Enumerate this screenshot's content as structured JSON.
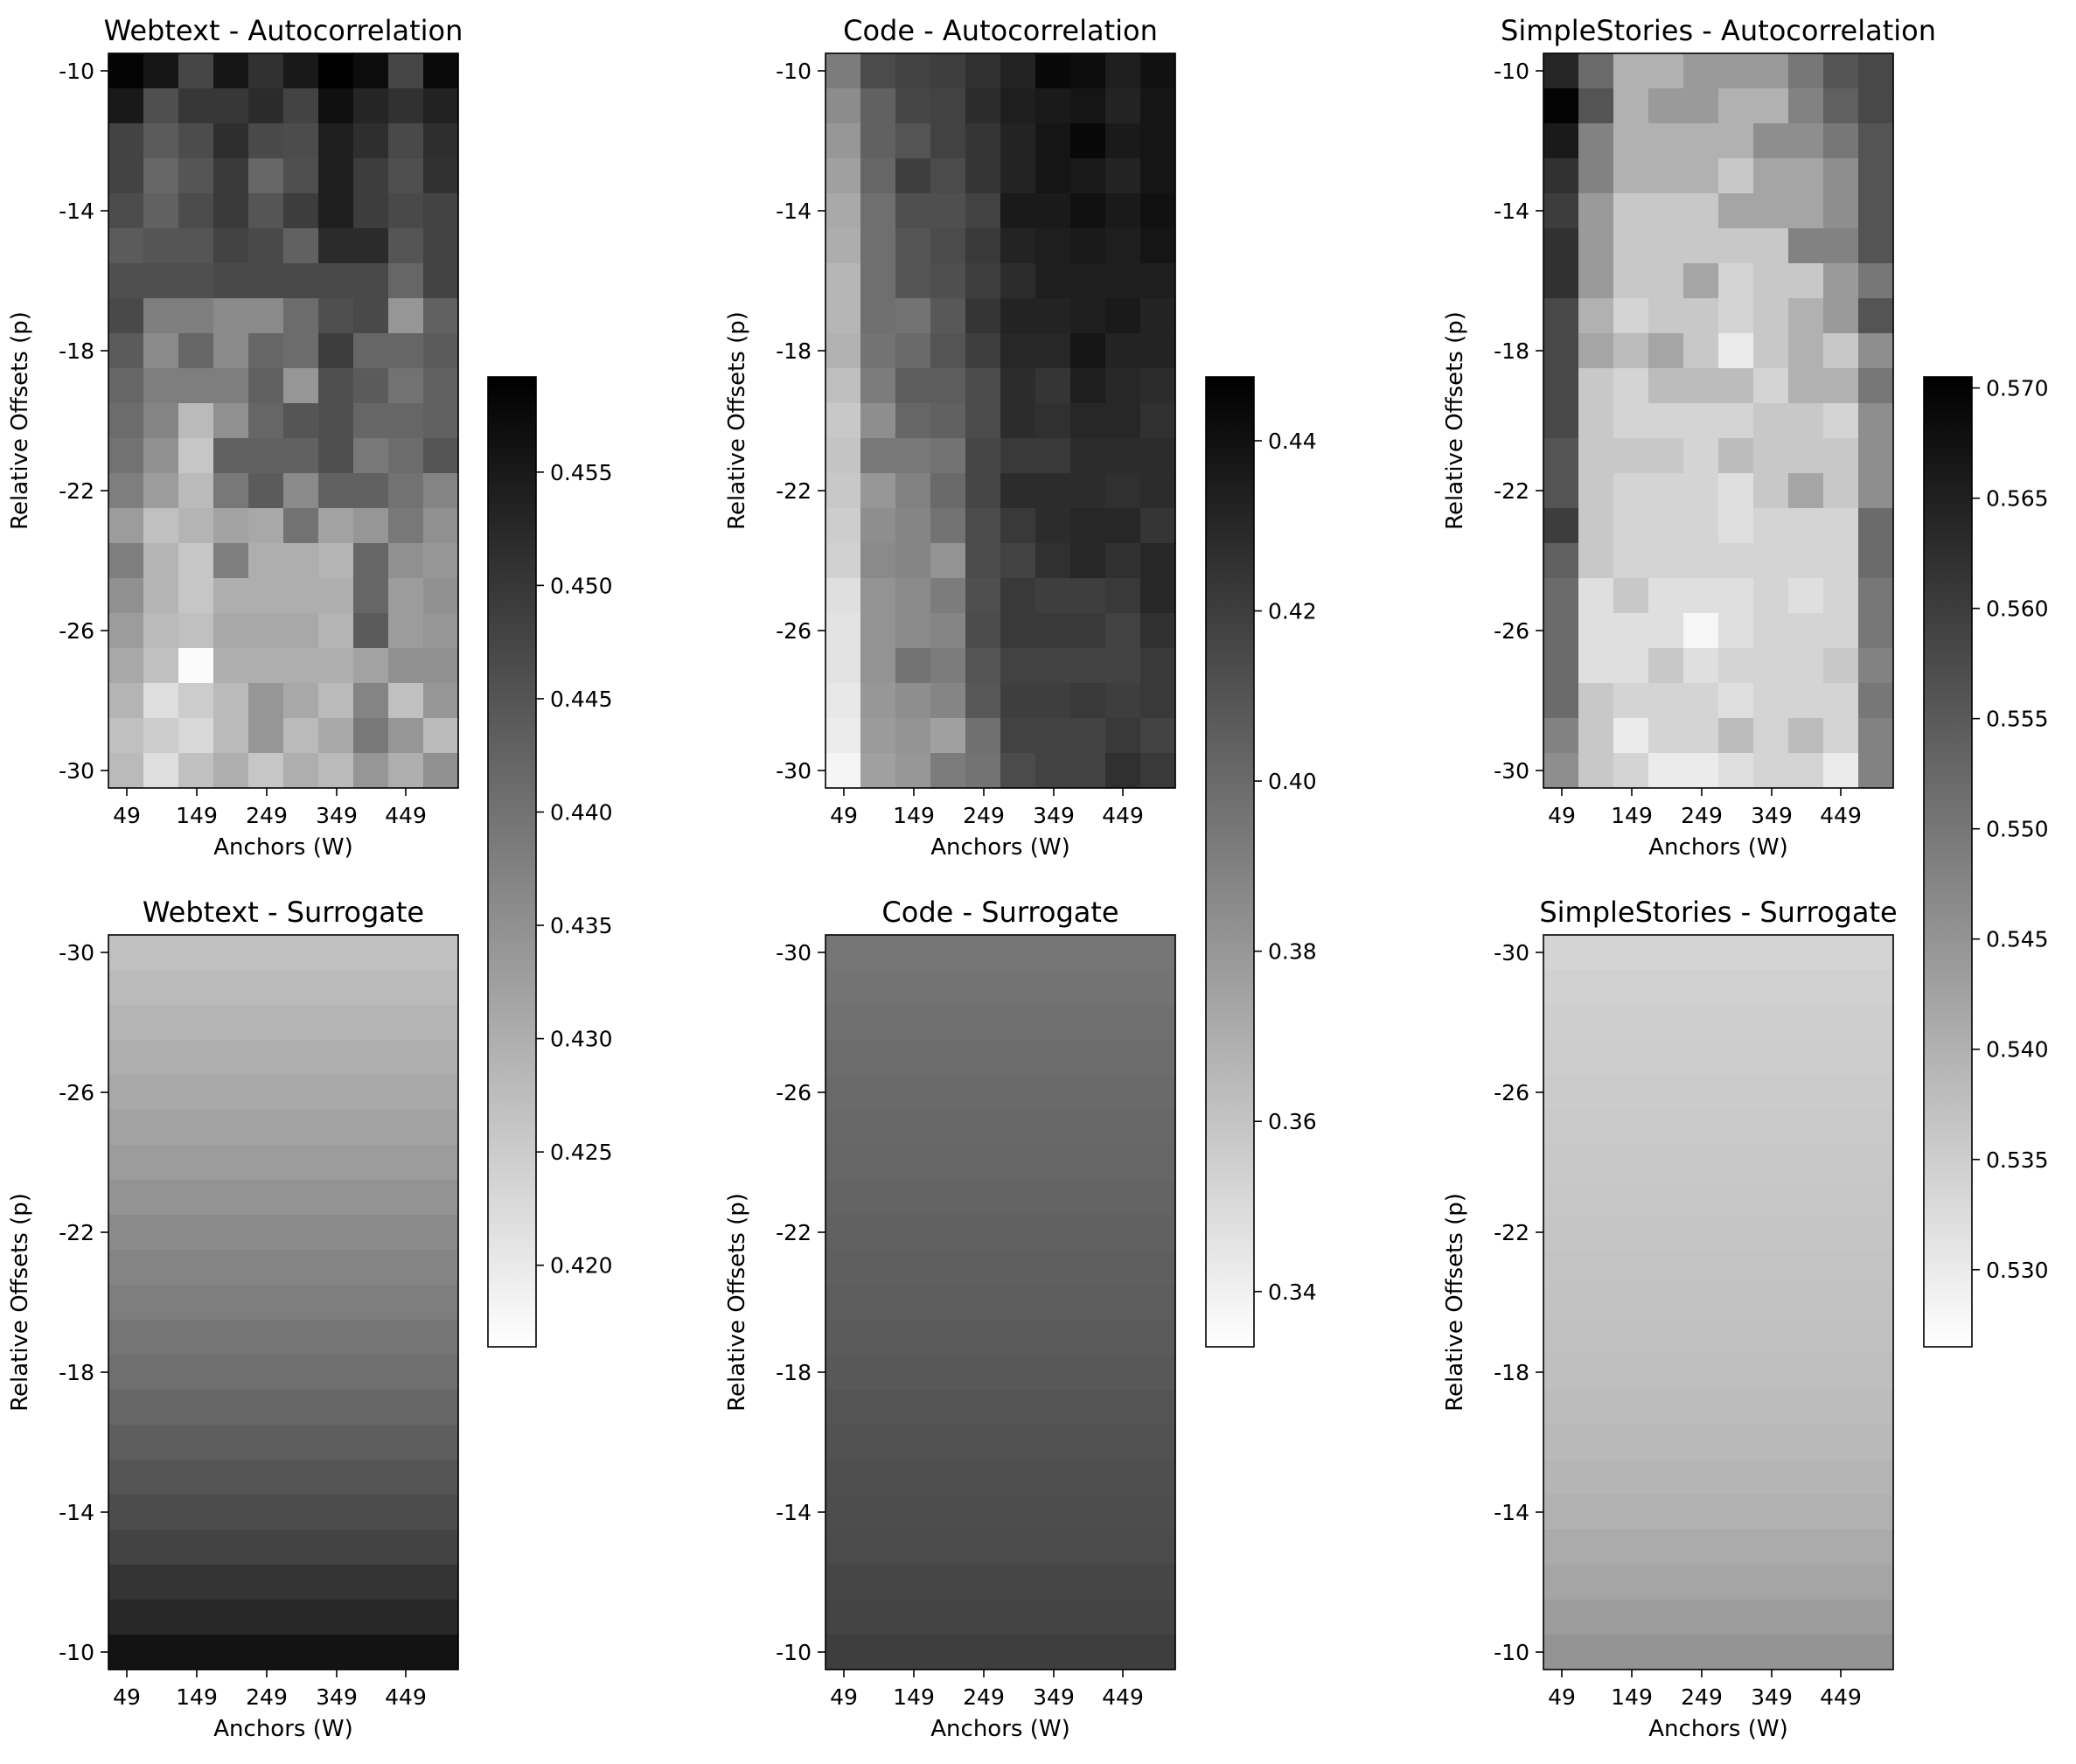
{
  "chart_data": [
    {
      "type": "heatmap",
      "title": "Webtext - Autocorrelation",
      "xlabel": "Anchors (W)",
      "ylabel": "Relative Offsets (p)",
      "x_ticks": [
        "49",
        "149",
        "249",
        "349",
        "449"
      ],
      "y_ticks": [
        "-10",
        "-14",
        "-18",
        "-22",
        "-26",
        "-30"
      ],
      "y_direction": "top -10, bottom -30",
      "rows_from_top": 21,
      "cols": 10,
      "colorscale": "gray_r",
      "values": [
        [
          0.4585,
          0.4555,
          0.4475,
          0.4555,
          0.451,
          0.455,
          0.459,
          0.457,
          0.4475,
          0.4575
        ],
        [
          0.455,
          0.446,
          0.45,
          0.45,
          0.452,
          0.448,
          0.4565,
          0.453,
          0.451,
          0.4535
        ],
        [
          0.448,
          0.444,
          0.4465,
          0.4515,
          0.447,
          0.4465,
          0.454,
          0.4515,
          0.447,
          0.4515
        ],
        [
          0.448,
          0.442,
          0.445,
          0.4495,
          0.442,
          0.446,
          0.454,
          0.449,
          0.446,
          0.451
        ],
        [
          0.4465,
          0.443,
          0.4465,
          0.4495,
          0.445,
          0.449,
          0.454,
          0.449,
          0.447,
          0.448
        ],
        [
          0.444,
          0.445,
          0.445,
          0.448,
          0.447,
          0.443,
          0.452,
          0.452,
          0.445,
          0.448
        ],
        [
          0.446,
          0.446,
          0.446,
          0.447,
          0.447,
          0.447,
          0.447,
          0.447,
          0.442,
          0.448
        ],
        [
          0.447,
          0.438,
          0.438,
          0.436,
          0.436,
          0.441,
          0.446,
          0.447,
          0.434,
          0.443
        ],
        [
          0.444,
          0.436,
          0.442,
          0.436,
          0.442,
          0.441,
          0.449,
          0.442,
          0.442,
          0.444
        ],
        [
          0.442,
          0.438,
          0.438,
          0.438,
          0.443,
          0.434,
          0.446,
          0.444,
          0.44,
          0.443
        ],
        [
          0.441,
          0.437,
          0.428,
          0.435,
          0.442,
          0.445,
          0.446,
          0.442,
          0.442,
          0.443
        ],
        [
          0.44,
          0.435,
          0.426,
          0.443,
          0.443,
          0.443,
          0.446,
          0.439,
          0.441,
          0.445
        ],
        [
          0.438,
          0.433,
          0.428,
          0.439,
          0.444,
          0.436,
          0.443,
          0.443,
          0.44,
          0.437
        ],
        [
          0.433,
          0.427,
          0.429,
          0.432,
          0.431,
          0.44,
          0.432,
          0.434,
          0.439,
          0.435
        ],
        [
          0.438,
          0.429,
          0.426,
          0.438,
          0.43,
          0.43,
          0.429,
          0.442,
          0.435,
          0.434
        ],
        [
          0.435,
          0.429,
          0.426,
          0.43,
          0.43,
          0.43,
          0.43,
          0.442,
          0.433,
          0.435
        ],
        [
          0.433,
          0.428,
          0.427,
          0.431,
          0.431,
          0.431,
          0.429,
          0.444,
          0.433,
          0.434
        ],
        [
          0.431,
          0.427,
          0.417,
          0.43,
          0.43,
          0.43,
          0.43,
          0.432,
          0.435,
          0.435
        ],
        [
          0.429,
          0.422,
          0.425,
          0.428,
          0.434,
          0.431,
          0.428,
          0.437,
          0.427,
          0.434
        ],
        [
          0.427,
          0.425,
          0.423,
          0.428,
          0.434,
          0.428,
          0.431,
          0.439,
          0.434,
          0.428
        ],
        [
          0.428,
          0.422,
          0.427,
          0.43,
          0.426,
          0.43,
          0.428,
          0.434,
          0.43,
          0.435
        ]
      ]
    },
    {
      "type": "heatmap",
      "title": "Code - Autocorrelation",
      "xlabel": "Anchors (W)",
      "ylabel": "Relative Offsets (p)",
      "x_ticks": [
        "49",
        "149",
        "249",
        "349",
        "449"
      ],
      "y_ticks": [
        "-10",
        "-14",
        "-18",
        "-22",
        "-26",
        "-30"
      ],
      "y_direction": "top -10, bottom -30",
      "rows_from_top": 21,
      "cols": 10,
      "colorscale": "gray_r",
      "values": [
        [
          0.392,
          0.414,
          0.418,
          0.42,
          0.426,
          0.432,
          0.444,
          0.442,
          0.434,
          0.44
        ],
        [
          0.385,
          0.404,
          0.416,
          0.418,
          0.428,
          0.434,
          0.436,
          0.438,
          0.432,
          0.438
        ],
        [
          0.38,
          0.404,
          0.41,
          0.418,
          0.424,
          0.432,
          0.438,
          0.444,
          0.436,
          0.438
        ],
        [
          0.376,
          0.402,
          0.42,
          0.414,
          0.424,
          0.432,
          0.438,
          0.436,
          0.432,
          0.438
        ],
        [
          0.372,
          0.398,
          0.412,
          0.412,
          0.418,
          0.436,
          0.436,
          0.44,
          0.436,
          0.44
        ],
        [
          0.37,
          0.398,
          0.41,
          0.414,
          0.422,
          0.432,
          0.434,
          0.436,
          0.434,
          0.438
        ],
        [
          0.366,
          0.398,
          0.41,
          0.412,
          0.42,
          0.428,
          0.434,
          0.434,
          0.434,
          0.434
        ],
        [
          0.366,
          0.398,
          0.396,
          0.408,
          0.424,
          0.432,
          0.432,
          0.434,
          0.436,
          0.432
        ],
        [
          0.368,
          0.396,
          0.4,
          0.41,
          0.42,
          0.43,
          0.43,
          0.438,
          0.432,
          0.432
        ],
        [
          0.362,
          0.392,
          0.406,
          0.406,
          0.414,
          0.428,
          0.424,
          0.434,
          0.43,
          0.428
        ],
        [
          0.358,
          0.384,
          0.402,
          0.404,
          0.414,
          0.428,
          0.426,
          0.43,
          0.43,
          0.426
        ],
        [
          0.36,
          0.394,
          0.394,
          0.396,
          0.416,
          0.422,
          0.422,
          0.428,
          0.428,
          0.428
        ],
        [
          0.358,
          0.38,
          0.39,
          0.4,
          0.416,
          0.428,
          0.428,
          0.428,
          0.426,
          0.428
        ],
        [
          0.356,
          0.384,
          0.388,
          0.396,
          0.414,
          0.422,
          0.428,
          0.43,
          0.43,
          0.424
        ],
        [
          0.354,
          0.386,
          0.388,
          0.382,
          0.414,
          0.418,
          0.426,
          0.43,
          0.426,
          0.43
        ],
        [
          0.348,
          0.382,
          0.386,
          0.392,
          0.412,
          0.422,
          0.42,
          0.42,
          0.422,
          0.43
        ],
        [
          0.346,
          0.382,
          0.386,
          0.388,
          0.414,
          0.422,
          0.422,
          0.422,
          0.418,
          0.426
        ],
        [
          0.346,
          0.382,
          0.396,
          0.392,
          0.41,
          0.418,
          0.418,
          0.418,
          0.418,
          0.422
        ],
        [
          0.344,
          0.38,
          0.384,
          0.388,
          0.408,
          0.42,
          0.42,
          0.422,
          0.42,
          0.422
        ],
        [
          0.342,
          0.378,
          0.382,
          0.376,
          0.398,
          0.418,
          0.418,
          0.418,
          0.422,
          0.418
        ],
        [
          0.338,
          0.376,
          0.38,
          0.392,
          0.396,
          0.414,
          0.418,
          0.418,
          0.426,
          0.422
        ]
      ]
    },
    {
      "type": "heatmap",
      "title": "SimpleStories - Autocorrelation",
      "xlabel": "Anchors (W)",
      "ylabel": "Relative Offsets (p)",
      "x_ticks": [
        "49",
        "149",
        "249",
        "349",
        "449"
      ],
      "y_ticks": [
        "-10",
        "-14",
        "-18",
        "-22",
        "-26",
        "-30"
      ],
      "y_direction": "top -10, bottom -30",
      "rows_from_top": 21,
      "cols": 10,
      "colorscale": "gray_r",
      "values": [
        [
          0.564,
          0.552,
          0.54,
          0.54,
          0.544,
          0.544,
          0.544,
          0.55,
          0.556,
          0.558
        ],
        [
          0.57,
          0.556,
          0.54,
          0.544,
          0.544,
          0.54,
          0.54,
          0.548,
          0.554,
          0.558
        ],
        [
          0.566,
          0.548,
          0.54,
          0.54,
          0.54,
          0.54,
          0.546,
          0.546,
          0.55,
          0.556
        ],
        [
          0.562,
          0.548,
          0.54,
          0.54,
          0.54,
          0.536,
          0.542,
          0.542,
          0.546,
          0.556
        ],
        [
          0.56,
          0.544,
          0.536,
          0.536,
          0.536,
          0.542,
          0.542,
          0.542,
          0.546,
          0.556
        ],
        [
          0.562,
          0.544,
          0.536,
          0.536,
          0.536,
          0.536,
          0.536,
          0.548,
          0.548,
          0.556
        ],
        [
          0.562,
          0.544,
          0.536,
          0.536,
          0.542,
          0.534,
          0.536,
          0.536,
          0.544,
          0.55
        ],
        [
          0.558,
          0.54,
          0.534,
          0.536,
          0.536,
          0.534,
          0.536,
          0.54,
          0.544,
          0.556
        ],
        [
          0.558,
          0.542,
          0.538,
          0.542,
          0.536,
          0.53,
          0.536,
          0.54,
          0.536,
          0.546
        ],
        [
          0.558,
          0.536,
          0.534,
          0.538,
          0.538,
          0.538,
          0.534,
          0.54,
          0.54,
          0.55
        ],
        [
          0.558,
          0.536,
          0.534,
          0.534,
          0.534,
          0.534,
          0.536,
          0.536,
          0.534,
          0.546
        ],
        [
          0.556,
          0.536,
          0.536,
          0.536,
          0.534,
          0.538,
          0.536,
          0.536,
          0.536,
          0.546
        ],
        [
          0.556,
          0.536,
          0.534,
          0.534,
          0.534,
          0.532,
          0.536,
          0.542,
          0.536,
          0.546
        ],
        [
          0.56,
          0.536,
          0.534,
          0.534,
          0.534,
          0.532,
          0.534,
          0.534,
          0.534,
          0.552
        ],
        [
          0.554,
          0.536,
          0.534,
          0.534,
          0.534,
          0.534,
          0.534,
          0.534,
          0.534,
          0.552
        ],
        [
          0.552,
          0.532,
          0.536,
          0.532,
          0.532,
          0.532,
          0.534,
          0.532,
          0.534,
          0.55
        ],
        [
          0.552,
          0.532,
          0.532,
          0.532,
          0.528,
          0.532,
          0.534,
          0.534,
          0.534,
          0.55
        ],
        [
          0.552,
          0.532,
          0.532,
          0.536,
          0.532,
          0.534,
          0.534,
          0.534,
          0.536,
          0.548
        ],
        [
          0.552,
          0.536,
          0.534,
          0.534,
          0.534,
          0.532,
          0.534,
          0.534,
          0.534,
          0.55
        ],
        [
          0.548,
          0.536,
          0.53,
          0.534,
          0.534,
          0.538,
          0.534,
          0.538,
          0.534,
          0.548
        ],
        [
          0.546,
          0.536,
          0.534,
          0.53,
          0.53,
          0.532,
          0.534,
          0.534,
          0.53,
          0.548
        ]
      ]
    },
    {
      "type": "heatmap",
      "title": "Webtext - Surrogate",
      "xlabel": "Anchors (W)",
      "ylabel": "Relative Offsets (p)",
      "x_ticks": [
        "49",
        "149",
        "249",
        "349",
        "449"
      ],
      "y_ticks": [
        "-30",
        "-26",
        "-22",
        "-18",
        "-14",
        "-10"
      ],
      "y_direction": "top -30, bottom -10",
      "rows_from_top": 21,
      "cols": 1,
      "colorscale": "gray_r",
      "values": [
        [
          0.427
        ],
        [
          0.428
        ],
        [
          0.429
        ],
        [
          0.43
        ],
        [
          0.431
        ],
        [
          0.432
        ],
        [
          0.433
        ],
        [
          0.4345
        ],
        [
          0.436
        ],
        [
          0.437
        ],
        [
          0.438
        ],
        [
          0.4395
        ],
        [
          0.4405
        ],
        [
          0.442
        ],
        [
          0.4435
        ],
        [
          0.445
        ],
        [
          0.4465
        ],
        [
          0.448
        ],
        [
          0.4505
        ],
        [
          0.4525
        ],
        [
          0.456
        ]
      ]
    },
    {
      "type": "heatmap",
      "title": "Code - Surrogate",
      "xlabel": "Anchors (W)",
      "ylabel": "Relative Offsets (p)",
      "x_ticks": [
        "49",
        "149",
        "249",
        "349",
        "449"
      ],
      "y_ticks": [
        "-30",
        "-26",
        "-22",
        "-18",
        "-14",
        "-10"
      ],
      "y_direction": "top -30, bottom -10",
      "rows_from_top": 21,
      "cols": 1,
      "colorscale": "gray_r",
      "values": [
        [
          0.395
        ],
        [
          0.396
        ],
        [
          0.398
        ],
        [
          0.399
        ],
        [
          0.4
        ],
        [
          0.401
        ],
        [
          0.402
        ],
        [
          0.403
        ],
        [
          0.404
        ],
        [
          0.405
        ],
        [
          0.406
        ],
        [
          0.407
        ],
        [
          0.408
        ],
        [
          0.41
        ],
        [
          0.411
        ],
        [
          0.412
        ],
        [
          0.413
        ],
        [
          0.414
        ],
        [
          0.416
        ],
        [
          0.417
        ],
        [
          0.42
        ]
      ]
    },
    {
      "type": "heatmap",
      "title": "SimpleStories - Surrogate",
      "xlabel": "Anchors (W)",
      "ylabel": "Relative Offsets (p)",
      "x_ticks": [
        "49",
        "149",
        "249",
        "349",
        "449"
      ],
      "y_ticks": [
        "-30",
        "-26",
        "-22",
        "-18",
        "-14",
        "-10"
      ],
      "y_direction": "top -30, bottom -10",
      "rows_from_top": 21,
      "cols": 1,
      "colorscale": "gray_r",
      "values": [
        [
          0.534
        ],
        [
          0.5345
        ],
        [
          0.535
        ],
        [
          0.5352
        ],
        [
          0.5355
        ],
        [
          0.5358
        ],
        [
          0.536
        ],
        [
          0.5362
        ],
        [
          0.5365
        ],
        [
          0.5368
        ],
        [
          0.537
        ],
        [
          0.5373
        ],
        [
          0.5376
        ],
        [
          0.538
        ],
        [
          0.5385
        ],
        [
          0.5392
        ],
        [
          0.54
        ],
        [
          0.541
        ],
        [
          0.542
        ],
        [
          0.5435
        ],
        [
          0.545
        ]
      ]
    }
  ],
  "colorbars": [
    {
      "vmin": 0.4164,
      "vmax": 0.4592,
      "ticks": [
        "0.420",
        "0.425",
        "0.430",
        "0.435",
        "0.440",
        "0.445",
        "0.450",
        "0.455"
      ]
    },
    {
      "vmin": 0.3335,
      "vmax": 0.4475,
      "ticks": [
        "0.34",
        "0.36",
        "0.38",
        "0.40",
        "0.42",
        "0.44"
      ]
    },
    {
      "vmin": 0.5265,
      "vmax": 0.5705,
      "ticks": [
        "0.530",
        "0.535",
        "0.540",
        "0.545",
        "0.550",
        "0.555",
        "0.560",
        "0.565",
        "0.570"
      ]
    }
  ]
}
